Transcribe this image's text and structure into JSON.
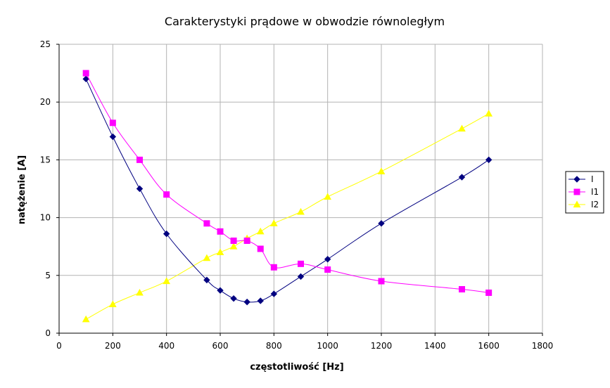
{
  "chart_data": {
    "type": "line",
    "title": "Carakterystyki prądowe w obwodzie równoległym",
    "xlabel": "częstotliwość [Hz]",
    "ylabel": "natężenie [A]",
    "xlim": [
      0,
      1800
    ],
    "ylim": [
      0,
      25
    ],
    "x_ticks": [
      "0",
      "200",
      "400",
      "600",
      "800",
      "1000",
      "1200",
      "1400",
      "1600",
      "1800"
    ],
    "y_ticks": [
      "0",
      "5",
      "10",
      "15",
      "20",
      "25"
    ],
    "grid": true,
    "legend_position": "right",
    "series": [
      {
        "name": "I",
        "color": "#000080",
        "marker": "diamond",
        "points": [
          [
            100,
            22
          ],
          [
            200,
            17
          ],
          [
            300,
            12.5
          ],
          [
            400,
            8.6
          ],
          [
            550,
            4.6
          ],
          [
            600,
            3.7
          ],
          [
            650,
            3
          ],
          [
            700,
            2.7
          ],
          [
            750,
            2.8
          ],
          [
            800,
            3.4
          ],
          [
            900,
            4.9
          ],
          [
            1000,
            6.4
          ],
          [
            1200,
            9.5
          ],
          [
            1500,
            13.5
          ],
          [
            1600,
            15
          ]
        ]
      },
      {
        "name": "I1",
        "color": "#ff00ff",
        "marker": "square",
        "points": [
          [
            100,
            22.5
          ],
          [
            200,
            18.2
          ],
          [
            300,
            15
          ],
          [
            400,
            12
          ],
          [
            550,
            9.5
          ],
          [
            600,
            8.8
          ],
          [
            650,
            8
          ],
          [
            700,
            8
          ],
          [
            750,
            7.3
          ],
          [
            800,
            5.7
          ],
          [
            900,
            6
          ],
          [
            1000,
            5.5
          ],
          [
            1200,
            4.5
          ],
          [
            1500,
            3.8
          ],
          [
            1600,
            3.5
          ]
        ]
      },
      {
        "name": "I2",
        "color": "#ffff00",
        "marker": "triangle",
        "points": [
          [
            100,
            1.2
          ],
          [
            200,
            2.5
          ],
          [
            300,
            3.5
          ],
          [
            400,
            4.5
          ],
          [
            550,
            6.5
          ],
          [
            600,
            7
          ],
          [
            650,
            7.5
          ],
          [
            700,
            8.2
          ],
          [
            750,
            8.8
          ],
          [
            800,
            9.5
          ],
          [
            900,
            10.5
          ],
          [
            1000,
            11.8
          ],
          [
            1200,
            14
          ],
          [
            1500,
            17.7
          ],
          [
            1600,
            19
          ]
        ]
      }
    ]
  }
}
